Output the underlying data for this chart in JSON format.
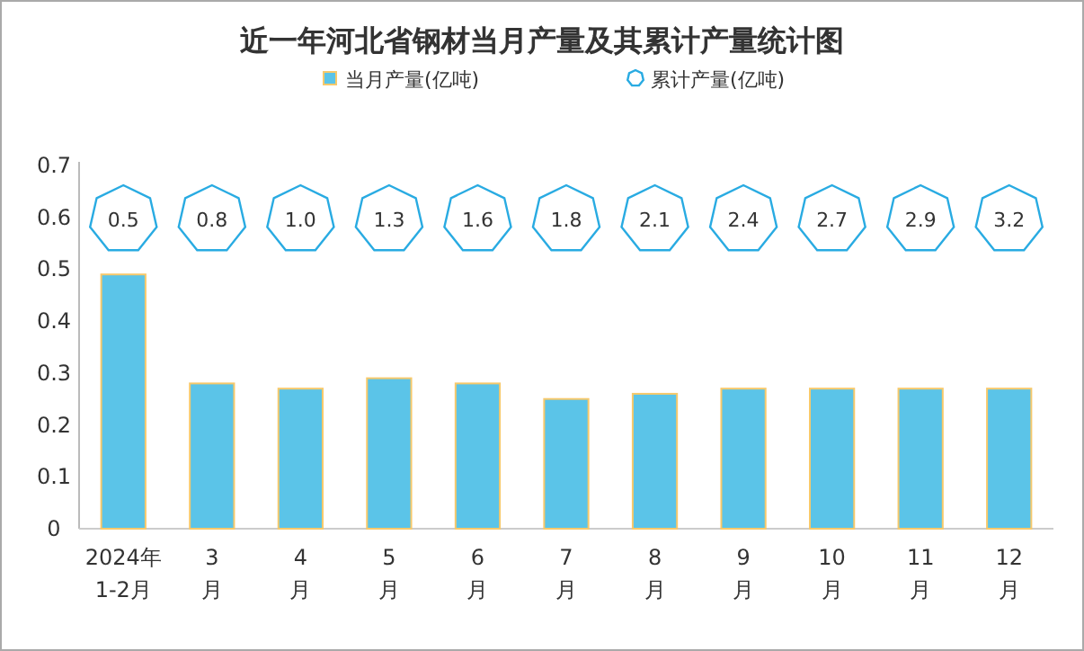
{
  "chart_data": [
    {
      "type": "bar",
      "title": "近一年河北省钢材当月产量及其累计产量统计图",
      "categories": [
        "2024年1-2月",
        "3月",
        "4月",
        "5月",
        "6月",
        "7月",
        "8月",
        "9月",
        "10月",
        "11月",
        "12月"
      ],
      "series": [
        {
          "name": "当月产量(亿吨)",
          "color": "#5bc4e8",
          "values": [
            0.49,
            0.28,
            0.27,
            0.29,
            0.28,
            0.25,
            0.26,
            0.27,
            0.27,
            0.27,
            0.27
          ]
        }
      ],
      "ylim": [
        0,
        0.7
      ],
      "yticks": [
        0,
        0.1,
        0.2,
        0.3,
        0.4,
        0.5,
        0.6,
        0.7
      ],
      "legend": "top"
    },
    {
      "type": "other",
      "categories": [
        null,
        null,
        null,
        null,
        null,
        null,
        null,
        null,
        null,
        null,
        null
      ],
      "series": [
        {
          "name": "累计产量(亿吨)",
          "color": "#29abe2",
          "values": [
            0.5,
            0.8,
            1.0,
            1.3,
            1.6,
            1.8,
            2.1,
            2.4,
            2.7,
            2.9,
            3.2
          ],
          "value_labels": [
            "0.5",
            "0.8",
            "1.0",
            "1.3",
            "1.6",
            "1.8",
            "2.1",
            "2.4",
            "2.7",
            "2.9",
            "3.2"
          ]
        }
      ],
      "legend": "top"
    }
  ]
}
